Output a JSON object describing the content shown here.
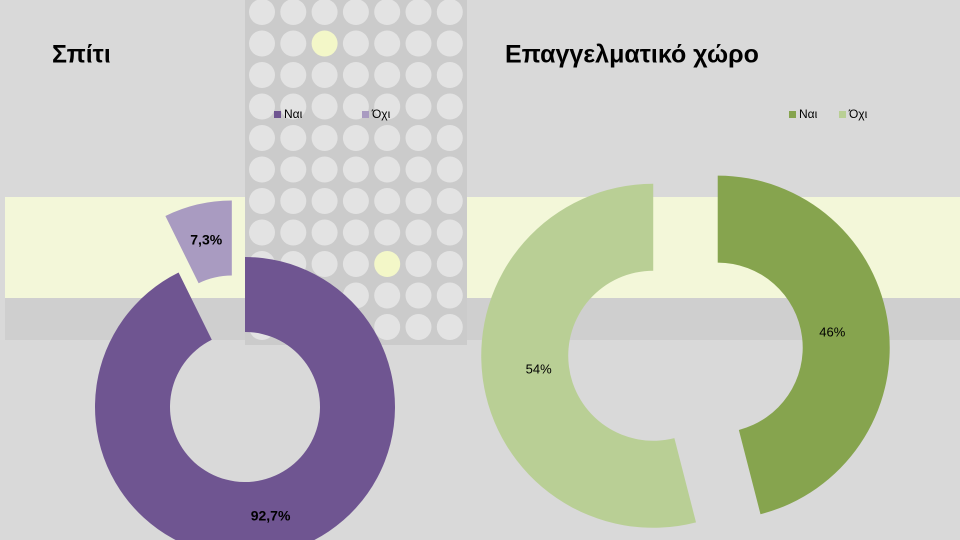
{
  "chart_data": [
    {
      "type": "donut",
      "title": "Σπίτι",
      "categories": [
        "Ναι",
        "Όχι"
      ],
      "values": [
        92.7,
        7.3
      ],
      "value_labels": [
        "92,7%",
        "7,3%"
      ],
      "colors": [
        "#6f5591",
        "#a99bc1"
      ],
      "legend": "top"
    },
    {
      "type": "donut",
      "title": "Επαγγελματικό χώρο",
      "categories": [
        "Ναι",
        "Όχι"
      ],
      "values": [
        46,
        54
      ],
      "value_labels": [
        "46%",
        "54%"
      ],
      "colors": [
        "#86a44e",
        "#b9cf95"
      ],
      "legend": "top"
    }
  ]
}
